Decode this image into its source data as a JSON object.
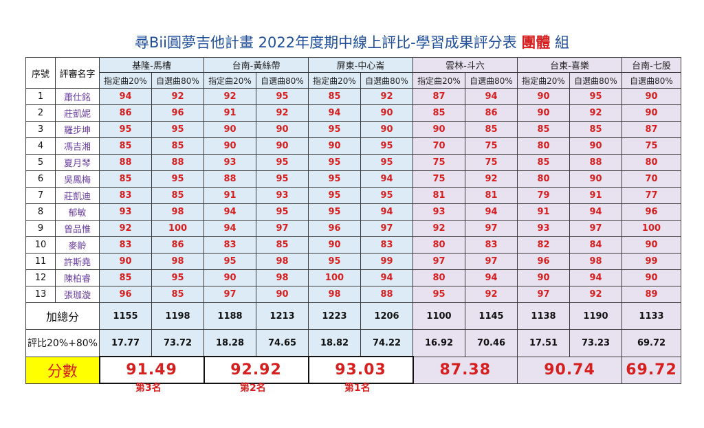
{
  "title": {
    "prefix": "尋Bii圓夢吉他計畫  2022年度期中線上評比-學習成果評分表 ",
    "group": "團體",
    "suffix": " 組"
  },
  "headers": {
    "seq": "序號",
    "judge": "評審名字",
    "assigned": "指定曲20%",
    "free": "自選曲80%",
    "total_label": "加總分",
    "eval_label": "評比20%+80%",
    "score_label": "分數"
  },
  "teams": [
    {
      "name": "基隆-馬槽",
      "has_assigned": true,
      "totals": [
        "1155",
        "1198"
      ],
      "evals": [
        "17.77",
        "73.72"
      ],
      "final": "91.49",
      "rank": "第3名"
    },
    {
      "name": "台南-黃絲帶",
      "has_assigned": true,
      "totals": [
        "1188",
        "1213"
      ],
      "evals": [
        "18.28",
        "74.65"
      ],
      "final": "92.92",
      "rank": "第2名"
    },
    {
      "name": "屏東-中心崙",
      "has_assigned": true,
      "totals": [
        "1223",
        "1206"
      ],
      "evals": [
        "18.82",
        "74.22"
      ],
      "final": "93.03",
      "rank": "第1名"
    },
    {
      "name": "雲林-斗六",
      "has_assigned": true,
      "totals": [
        "1100",
        "1145"
      ],
      "evals": [
        "16.92",
        "70.46"
      ],
      "final": "87.38",
      "rank": ""
    },
    {
      "name": "台東-喜樂",
      "has_assigned": true,
      "totals": [
        "1138",
        "1190"
      ],
      "evals": [
        "17.51",
        "73.23"
      ],
      "final": "90.74",
      "rank": ""
    },
    {
      "name": "台南-七股",
      "has_assigned": false,
      "totals": [
        "1133"
      ],
      "evals": [
        "69.72"
      ],
      "final": "69.72",
      "rank": ""
    }
  ],
  "judges": [
    {
      "seq": "1",
      "name": "蕭仕銘",
      "scores": [
        "94",
        "92",
        "92",
        "95",
        "85",
        "92",
        "87",
        "94",
        "90",
        "95",
        "90"
      ]
    },
    {
      "seq": "2",
      "name": "莊凱妮",
      "scores": [
        "86",
        "96",
        "91",
        "92",
        "94",
        "90",
        "85",
        "86",
        "90",
        "92",
        "90"
      ]
    },
    {
      "seq": "3",
      "name": "羅步坤",
      "scores": [
        "95",
        "95",
        "90",
        "90",
        "95",
        "90",
        "90",
        "85",
        "85",
        "85",
        "87"
      ]
    },
    {
      "seq": "4",
      "name": "馮吉湘",
      "scores": [
        "85",
        "85",
        "90",
        "90",
        "90",
        "95",
        "70",
        "75",
        "80",
        "90",
        "75"
      ]
    },
    {
      "seq": "5",
      "name": "夏月琴",
      "scores": [
        "88",
        "88",
        "93",
        "95",
        "95",
        "95",
        "75",
        "75",
        "85",
        "88",
        "80"
      ]
    },
    {
      "seq": "6",
      "name": "吳鳳梅",
      "scores": [
        "85",
        "95",
        "88",
        "95",
        "95",
        "94",
        "75",
        "92",
        "80",
        "90",
        "70"
      ]
    },
    {
      "seq": "7",
      "name": "莊凱迪",
      "scores": [
        "83",
        "85",
        "91",
        "93",
        "95",
        "95",
        "81",
        "81",
        "79",
        "91",
        "77"
      ]
    },
    {
      "seq": "8",
      "name": "郁敏",
      "scores": [
        "93",
        "98",
        "94",
        "95",
        "95",
        "94",
        "93",
        "94",
        "91",
        "94",
        "96"
      ]
    },
    {
      "seq": "9",
      "name": "曾品惟",
      "scores": [
        "92",
        "100",
        "94",
        "97",
        "96",
        "97",
        "92",
        "97",
        "93",
        "97",
        "100"
      ]
    },
    {
      "seq": "10",
      "name": "麥齡",
      "scores": [
        "83",
        "86",
        "83",
        "85",
        "90",
        "83",
        "80",
        "83",
        "82",
        "84",
        "90"
      ]
    },
    {
      "seq": "11",
      "name": "許斯堯",
      "scores": [
        "90",
        "98",
        "95",
        "98",
        "95",
        "99",
        "97",
        "97",
        "96",
        "98",
        "99"
      ]
    },
    {
      "seq": "12",
      "name": "陳柏睿",
      "scores": [
        "85",
        "95",
        "90",
        "98",
        "100",
        "94",
        "80",
        "94",
        "90",
        "94",
        "90"
      ]
    },
    {
      "seq": "13",
      "name": "張珈漩",
      "scores": [
        "96",
        "85",
        "97",
        "90",
        "98",
        "88",
        "95",
        "92",
        "97",
        "92",
        "89"
      ]
    }
  ],
  "colors": {
    "blue_fill": "#dcebf5",
    "lavender_fill": "#e7e1f0",
    "score_red": "#d61f1f",
    "label_yellow": "#ffff00"
  }
}
